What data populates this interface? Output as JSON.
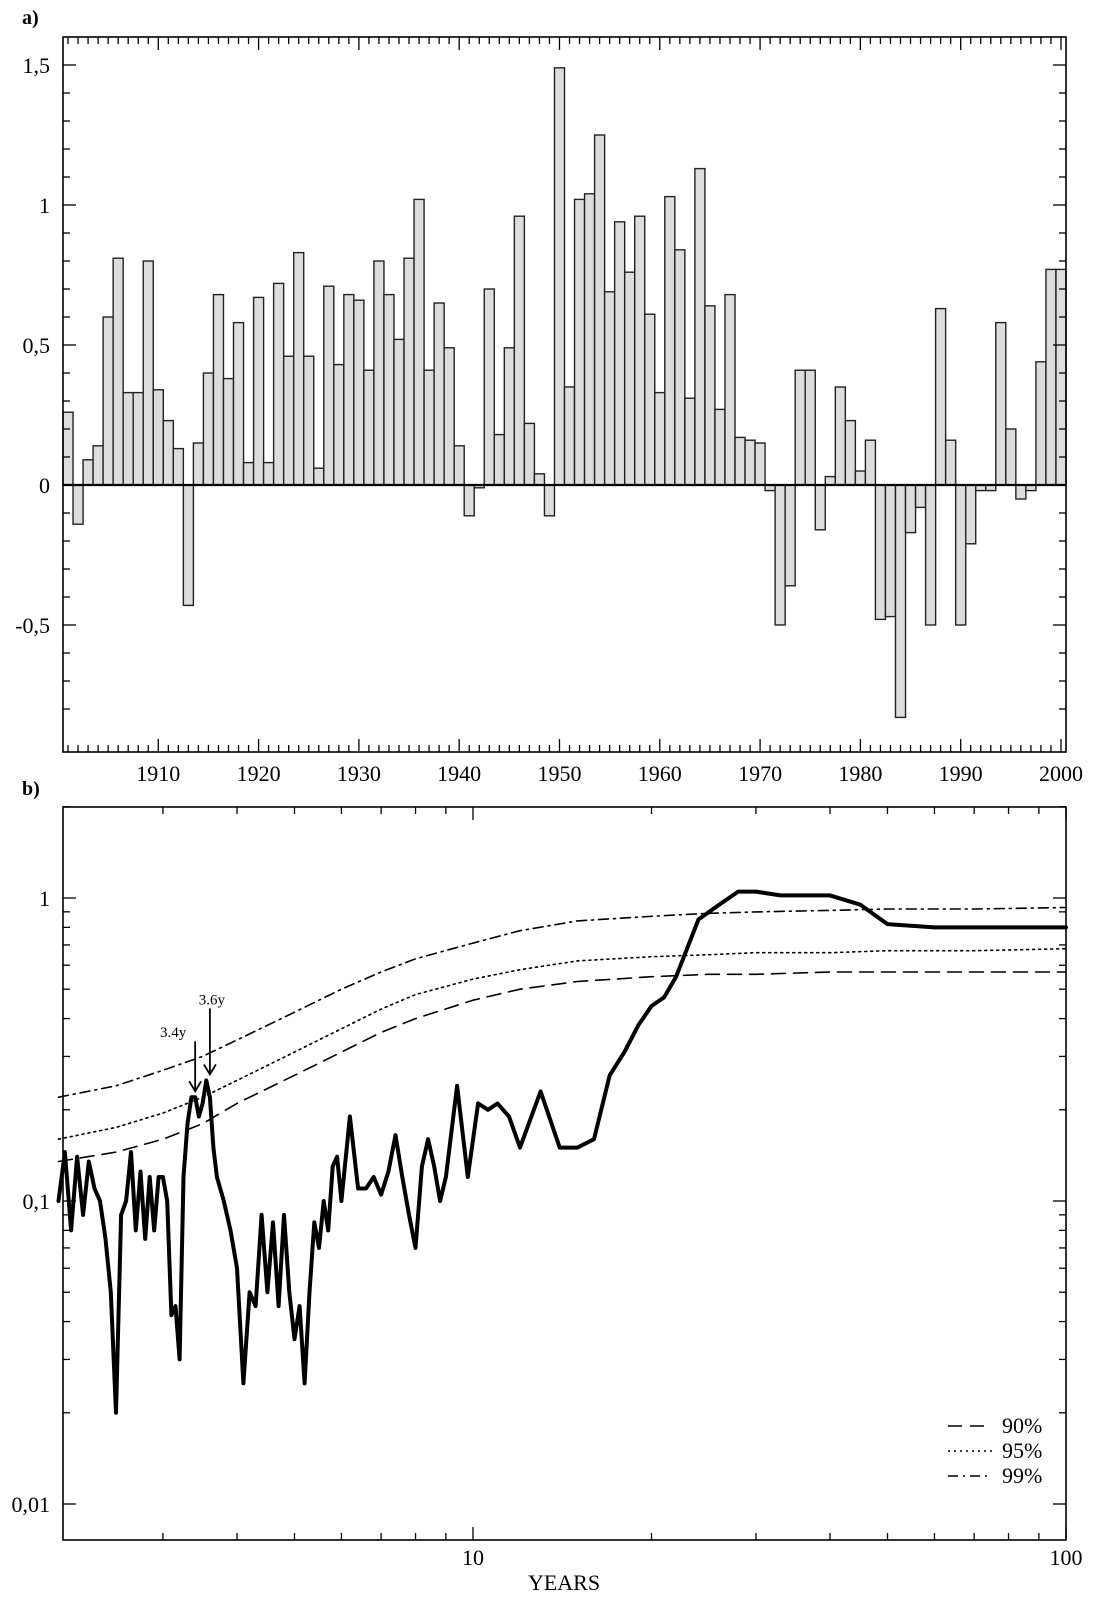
{
  "chart_data": [
    {
      "panel_label": "a)",
      "type": "bar",
      "style": "step histogram, gray fill (#dddddd), black outline, zero baseline drawn",
      "xlim": [
        1901,
        2000
      ],
      "ylim": [
        -0.9,
        1.6
      ],
      "x_tick_labels": [
        "1910",
        "1920",
        "1930",
        "1940",
        "1950",
        "1960",
        "1970",
        "1980",
        "1990",
        "2000"
      ],
      "y_tick_labels": [
        "1,5",
        "1",
        "0,5",
        "0",
        "-0,5"
      ],
      "y_tick_values": [
        1.5,
        1,
        0.5,
        0,
        -0.5
      ],
      "grid": false,
      "x": [
        1901,
        1902,
        1903,
        1904,
        1905,
        1906,
        1907,
        1908,
        1909,
        1910,
        1911,
        1912,
        1913,
        1914,
        1915,
        1916,
        1917,
        1918,
        1919,
        1920,
        1921,
        1922,
        1923,
        1924,
        1925,
        1926,
        1927,
        1928,
        1929,
        1930,
        1931,
        1932,
        1933,
        1934,
        1935,
        1936,
        1937,
        1938,
        1939,
        1940,
        1941,
        1942,
        1943,
        1944,
        1945,
        1946,
        1947,
        1948,
        1949,
        1950,
        1951,
        1952,
        1953,
        1954,
        1955,
        1956,
        1957,
        1958,
        1959,
        1960,
        1961,
        1962,
        1963,
        1964,
        1965,
        1966,
        1967,
        1968,
        1969,
        1970,
        1971,
        1972,
        1973,
        1974,
        1975,
        1976,
        1977,
        1978,
        1979,
        1980,
        1981,
        1982,
        1983,
        1984,
        1985,
        1986,
        1987,
        1988,
        1989,
        1990,
        1991,
        1992,
        1993,
        1994,
        1995,
        1996,
        1997,
        1998,
        1999,
        2000
      ],
      "values": [
        0.26,
        -0.14,
        0.09,
        0.14,
        0.6,
        0.81,
        0.33,
        0.33,
        0.8,
        0.34,
        0.23,
        0.13,
        -0.43,
        0.15,
        0.4,
        0.68,
        0.38,
        0.58,
        0.08,
        0.67,
        0.08,
        0.72,
        0.46,
        0.83,
        0.46,
        0.06,
        0.71,
        0.43,
        0.68,
        0.66,
        0.41,
        0.8,
        0.68,
        0.52,
        0.81,
        1.02,
        0.41,
        0.65,
        0.49,
        0.14,
        -0.11,
        -0.01,
        0.7,
        0.18,
        0.49,
        0.96,
        0.22,
        0.04,
        -0.11,
        1.49,
        0.35,
        1.02,
        1.04,
        1.25,
        0.69,
        0.94,
        0.76,
        0.96,
        0.61,
        0.33,
        1.03,
        0.84,
        0.31,
        1.13,
        0.64,
        0.27,
        0.68,
        0.17,
        0.16,
        0.15,
        -0.02,
        -0.5,
        -0.36,
        0.41,
        0.41,
        -0.16,
        0.03,
        0.35,
        0.23,
        0.05,
        0.16,
        -0.48,
        -0.47,
        -0.83,
        -0.17,
        -0.08,
        -0.5,
        0.63,
        0.16,
        -0.5,
        -0.21,
        -0.02,
        -0.02,
        0.58,
        0.2,
        -0.05,
        -0.02,
        0.44,
        0.77,
        0.77
      ]
    },
    {
      "panel_label": "b)",
      "type": "line",
      "xscale": "log",
      "yscale": "log",
      "xlim": [
        2,
        100
      ],
      "ylim": [
        0.01,
        2
      ],
      "xlabel": "YEARS",
      "x_tick_labels": [
        "10",
        "100"
      ],
      "x_tick_values": [
        10,
        100
      ],
      "y_tick_labels": [
        "1",
        "0,1",
        "0,01"
      ],
      "y_tick_values": [
        1,
        0.1,
        0.01
      ],
      "grid": false,
      "legend_placement": "bottom-right",
      "series": [
        {
          "style": "thick-solid",
          "x": [
            2.0,
            2.05,
            2.1,
            2.15,
            2.2,
            2.25,
            2.3,
            2.35,
            2.4,
            2.45,
            2.5,
            2.55,
            2.6,
            2.65,
            2.7,
            2.75,
            2.8,
            2.85,
            2.9,
            2.95,
            3.0,
            3.05,
            3.1,
            3.15,
            3.2,
            3.25,
            3.3,
            3.35,
            3.4,
            3.45,
            3.5,
            3.55,
            3.6,
            3.65,
            3.7,
            3.8,
            3.9,
            4.0,
            4.1,
            4.2,
            4.3,
            4.4,
            4.5,
            4.6,
            4.7,
            4.8,
            4.9,
            5.0,
            5.1,
            5.2,
            5.3,
            5.4,
            5.5,
            5.6,
            5.7,
            5.8,
            5.9,
            6.0,
            6.2,
            6.4,
            6.6,
            6.8,
            7.0,
            7.2,
            7.4,
            7.6,
            7.8,
            8.0,
            8.2,
            8.4,
            8.6,
            8.8,
            9.0,
            9.4,
            9.8,
            10.2,
            10.6,
            11.0,
            11.5,
            12.0,
            13.0,
            14.0,
            15.0,
            16.0,
            17.0,
            18.0,
            19.0,
            20.0,
            21.0,
            22.0,
            24.0,
            26.0,
            28.0,
            30.0,
            33.0,
            36.0,
            40.0,
            45.0,
            50.0,
            60.0,
            70.0,
            80.0,
            90.0,
            100.0
          ],
          "values": [
            0.1,
            0.145,
            0.08,
            0.14,
            0.09,
            0.135,
            0.11,
            0.1,
            0.075,
            0.05,
            0.02,
            0.09,
            0.1,
            0.145,
            0.08,
            0.125,
            0.075,
            0.12,
            0.08,
            0.12,
            0.12,
            0.1,
            0.042,
            0.045,
            0.03,
            0.12,
            0.18,
            0.22,
            0.22,
            0.19,
            0.21,
            0.25,
            0.22,
            0.15,
            0.12,
            0.1,
            0.08,
            0.06,
            0.025,
            0.05,
            0.045,
            0.09,
            0.05,
            0.085,
            0.045,
            0.09,
            0.05,
            0.035,
            0.045,
            0.025,
            0.05,
            0.085,
            0.07,
            0.1,
            0.08,
            0.13,
            0.14,
            0.1,
            0.19,
            0.11,
            0.11,
            0.12,
            0.105,
            0.125,
            0.165,
            0.12,
            0.09,
            0.07,
            0.13,
            0.16,
            0.13,
            0.1,
            0.12,
            0.24,
            0.12,
            0.21,
            0.2,
            0.21,
            0.19,
            0.15,
            0.23,
            0.15,
            0.15,
            0.16,
            0.26,
            0.31,
            0.38,
            0.44,
            0.47,
            0.55,
            0.85,
            0.95,
            1.05,
            1.05,
            1.02,
            1.02,
            1.02,
            0.95,
            0.82,
            0.8,
            0.8,
            0.8,
            0.8,
            0.8
          ]
        },
        {
          "name": "90%",
          "style": "dashed",
          "x": [
            2,
            2.5,
            3,
            3.5,
            4,
            5,
            6,
            7,
            8,
            10,
            12,
            15,
            20,
            25,
            30,
            40,
            50,
            70,
            100
          ],
          "values": [
            0.135,
            0.145,
            0.16,
            0.18,
            0.21,
            0.26,
            0.31,
            0.36,
            0.4,
            0.46,
            0.5,
            0.53,
            0.55,
            0.56,
            0.56,
            0.57,
            0.57,
            0.57,
            0.57
          ]
        },
        {
          "name": "95%",
          "style": "dotted",
          "x": [
            2,
            2.5,
            3,
            3.5,
            4,
            5,
            6,
            7,
            8,
            10,
            12,
            15,
            20,
            25,
            30,
            40,
            50,
            70,
            100
          ],
          "values": [
            0.16,
            0.175,
            0.195,
            0.22,
            0.25,
            0.31,
            0.37,
            0.43,
            0.48,
            0.54,
            0.58,
            0.62,
            0.64,
            0.65,
            0.66,
            0.66,
            0.67,
            0.67,
            0.68
          ]
        },
        {
          "name": "99%",
          "style": "dash-dot",
          "x": [
            2,
            2.5,
            3,
            3.5,
            4,
            5,
            6,
            7,
            8,
            10,
            12,
            15,
            20,
            25,
            30,
            40,
            50,
            70,
            100
          ],
          "values": [
            0.22,
            0.24,
            0.27,
            0.3,
            0.34,
            0.42,
            0.5,
            0.57,
            0.63,
            0.71,
            0.78,
            0.84,
            0.87,
            0.89,
            0.9,
            0.91,
            0.92,
            0.92,
            0.93
          ]
        }
      ],
      "annotations": [
        {
          "text": "3.4y",
          "x": 3.4,
          "y": 0.22
        },
        {
          "text": "3.6y",
          "x": 3.6,
          "y": 0.25
        }
      ]
    }
  ]
}
